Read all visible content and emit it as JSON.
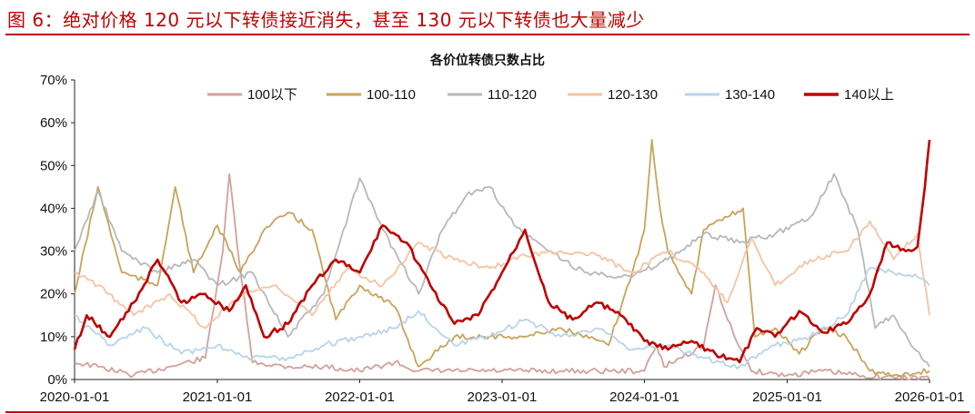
{
  "figure_title": "图 6：绝对价格 120 元以下转债接近消失，甚至 130 元以下转债也大量减少",
  "chart_data": {
    "type": "line",
    "title": "各价位转债只数占比",
    "xlabel": "",
    "ylabel": "",
    "ylim": [
      0,
      70
    ],
    "y_ticks": [
      "0%",
      "10%",
      "20%",
      "30%",
      "40%",
      "50%",
      "60%",
      "70%"
    ],
    "x_range": [
      "2020-01-01",
      "2026-01-01"
    ],
    "x_ticks": [
      "2020-01-01",
      "2021-01-01",
      "2022-01-01",
      "2023-01-01",
      "2024-01-01",
      "2025-01-01",
      "2026-01-01"
    ],
    "grid": false,
    "legend_position": "top",
    "series": [
      {
        "name": "100以下",
        "color": "#d4a09b",
        "points": [
          [
            "2020-01-01",
            4
          ],
          [
            "2020-03-01",
            3
          ],
          [
            "2020-06-01",
            1
          ],
          [
            "2020-09-01",
            3
          ],
          [
            "2020-12-01",
            5
          ],
          [
            "2021-01-15",
            30
          ],
          [
            "2021-02-01",
            48
          ],
          [
            "2021-02-20",
            32
          ],
          [
            "2021-04-01",
            4
          ],
          [
            "2021-07-01",
            3
          ],
          [
            "2021-10-01",
            3
          ],
          [
            "2022-01-01",
            2
          ],
          [
            "2022-04-01",
            4
          ],
          [
            "2022-06-01",
            2
          ],
          [
            "2022-10-01",
            2
          ],
          [
            "2023-01-01",
            2
          ],
          [
            "2023-06-01",
            2
          ],
          [
            "2023-10-01",
            2
          ],
          [
            "2024-01-01",
            2
          ],
          [
            "2024-02-01",
            8
          ],
          [
            "2024-02-20",
            3
          ],
          [
            "2024-06-01",
            8
          ],
          [
            "2024-07-01",
            22
          ],
          [
            "2024-08-01",
            14
          ],
          [
            "2024-09-15",
            5
          ],
          [
            "2024-10-01",
            2
          ],
          [
            "2025-01-01",
            1
          ],
          [
            "2025-04-01",
            2
          ],
          [
            "2025-07-01",
            1
          ],
          [
            "2025-10-01",
            0.5
          ],
          [
            "2026-01-01",
            0.3
          ]
        ]
      },
      {
        "name": "100-110",
        "color": "#c9a35a",
        "points": [
          [
            "2020-01-01",
            20
          ],
          [
            "2020-03-01",
            45
          ],
          [
            "2020-05-01",
            25
          ],
          [
            "2020-08-01",
            22
          ],
          [
            "2020-09-15",
            45
          ],
          [
            "2020-11-01",
            25
          ],
          [
            "2021-01-01",
            36
          ],
          [
            "2021-03-01",
            25
          ],
          [
            "2021-05-01",
            35
          ],
          [
            "2021-07-01",
            39
          ],
          [
            "2021-09-01",
            35
          ],
          [
            "2021-11-01",
            14
          ],
          [
            "2022-01-01",
            22
          ],
          [
            "2022-04-01",
            17
          ],
          [
            "2022-06-01",
            3
          ],
          [
            "2022-09-01",
            10
          ],
          [
            "2022-12-01",
            10
          ],
          [
            "2023-03-01",
            10
          ],
          [
            "2023-06-01",
            12
          ],
          [
            "2023-10-01",
            8
          ],
          [
            "2023-12-01",
            25
          ],
          [
            "2024-01-01",
            35
          ],
          [
            "2024-01-20",
            56
          ],
          [
            "2024-02-10",
            40
          ],
          [
            "2024-03-01",
            30
          ],
          [
            "2024-05-01",
            20
          ],
          [
            "2024-06-01",
            35
          ],
          [
            "2024-08-01",
            38
          ],
          [
            "2024-09-10",
            40
          ],
          [
            "2024-10-10",
            10
          ],
          [
            "2024-12-01",
            12
          ],
          [
            "2025-02-01",
            6
          ],
          [
            "2025-04-01",
            12
          ],
          [
            "2025-06-01",
            10
          ],
          [
            "2025-08-01",
            2
          ],
          [
            "2025-10-01",
            1
          ],
          [
            "2026-01-01",
            2
          ]
        ]
      },
      {
        "name": "110-120",
        "color": "#b8b8b8",
        "points": [
          [
            "2020-01-01",
            30
          ],
          [
            "2020-03-01",
            44
          ],
          [
            "2020-05-01",
            30
          ],
          [
            "2020-08-01",
            25
          ],
          [
            "2020-11-01",
            28
          ],
          [
            "2021-01-01",
            22
          ],
          [
            "2021-04-01",
            25
          ],
          [
            "2021-07-01",
            10
          ],
          [
            "2021-10-01",
            20
          ],
          [
            "2022-01-01",
            47
          ],
          [
            "2022-03-01",
            35
          ],
          [
            "2022-06-01",
            20
          ],
          [
            "2022-08-01",
            35
          ],
          [
            "2022-10-01",
            43
          ],
          [
            "2022-12-01",
            45
          ],
          [
            "2023-02-01",
            36
          ],
          [
            "2023-05-01",
            30
          ],
          [
            "2023-08-01",
            25
          ],
          [
            "2023-12-01",
            24
          ],
          [
            "2024-03-01",
            28
          ],
          [
            "2024-06-01",
            34
          ],
          [
            "2024-09-01",
            32
          ],
          [
            "2024-12-01",
            34
          ],
          [
            "2025-03-01",
            38
          ],
          [
            "2025-05-01",
            48
          ],
          [
            "2025-07-01",
            35
          ],
          [
            "2025-08-15",
            12
          ],
          [
            "2025-10-01",
            15
          ],
          [
            "2025-11-15",
            8
          ],
          [
            "2026-01-01",
            3
          ]
        ]
      },
      {
        "name": "120-130",
        "color": "#f4c4a4",
        "points": [
          [
            "2020-01-01",
            25
          ],
          [
            "2020-03-01",
            22
          ],
          [
            "2020-06-01",
            15
          ],
          [
            "2020-09-01",
            20
          ],
          [
            "2020-12-01",
            12
          ],
          [
            "2021-03-01",
            20
          ],
          [
            "2021-06-01",
            22
          ],
          [
            "2021-09-01",
            15
          ],
          [
            "2021-12-01",
            26
          ],
          [
            "2022-03-01",
            22
          ],
          [
            "2022-06-01",
            32
          ],
          [
            "2022-09-01",
            28
          ],
          [
            "2022-12-01",
            26
          ],
          [
            "2023-03-01",
            29
          ],
          [
            "2023-06-01",
            30
          ],
          [
            "2023-09-01",
            29
          ],
          [
            "2023-12-01",
            25
          ],
          [
            "2024-03-01",
            30
          ],
          [
            "2024-06-01",
            25
          ],
          [
            "2024-08-01",
            18
          ],
          [
            "2024-10-01",
            33
          ],
          [
            "2024-12-01",
            22
          ],
          [
            "2025-03-01",
            28
          ],
          [
            "2025-06-01",
            30
          ],
          [
            "2025-08-01",
            37
          ],
          [
            "2025-10-01",
            28
          ],
          [
            "2025-12-01",
            34
          ],
          [
            "2026-01-01",
            15
          ]
        ]
      },
      {
        "name": "130-140",
        "color": "#b8d4ea",
        "points": [
          [
            "2020-01-01",
            15
          ],
          [
            "2020-04-01",
            8
          ],
          [
            "2020-07-01",
            12
          ],
          [
            "2020-10-01",
            6
          ],
          [
            "2021-01-01",
            8
          ],
          [
            "2021-04-01",
            5
          ],
          [
            "2021-07-01",
            5
          ],
          [
            "2021-10-01",
            8
          ],
          [
            "2022-01-01",
            10
          ],
          [
            "2022-04-01",
            12
          ],
          [
            "2022-06-01",
            16
          ],
          [
            "2022-09-01",
            8
          ],
          [
            "2022-12-01",
            10
          ],
          [
            "2023-03-01",
            14
          ],
          [
            "2023-06-01",
            10
          ],
          [
            "2023-09-01",
            12
          ],
          [
            "2023-12-01",
            7
          ],
          [
            "2024-03-01",
            8
          ],
          [
            "2024-06-01",
            5
          ],
          [
            "2024-09-01",
            3
          ],
          [
            "2024-12-01",
            8
          ],
          [
            "2025-03-01",
            10
          ],
          [
            "2025-06-01",
            15
          ],
          [
            "2025-08-01",
            26
          ],
          [
            "2025-10-01",
            25
          ],
          [
            "2025-12-01",
            24
          ],
          [
            "2026-01-01",
            22
          ]
        ]
      },
      {
        "name": "140以上",
        "color": "#c00000",
        "points": [
          [
            "2020-01-01",
            7
          ],
          [
            "2020-02-01",
            15
          ],
          [
            "2020-04-01",
            10
          ],
          [
            "2020-06-01",
            18
          ],
          [
            "2020-08-01",
            28
          ],
          [
            "2020-10-01",
            18
          ],
          [
            "2020-12-01",
            20
          ],
          [
            "2021-02-01",
            16
          ],
          [
            "2021-03-15",
            22
          ],
          [
            "2021-05-01",
            10
          ],
          [
            "2021-07-01",
            13
          ],
          [
            "2021-09-01",
            22
          ],
          [
            "2021-11-01",
            28
          ],
          [
            "2022-01-01",
            25
          ],
          [
            "2022-03-01",
            36
          ],
          [
            "2022-05-01",
            32
          ],
          [
            "2022-07-01",
            22
          ],
          [
            "2022-09-01",
            13
          ],
          [
            "2022-11-01",
            15
          ],
          [
            "2023-01-01",
            25
          ],
          [
            "2023-03-01",
            35
          ],
          [
            "2023-05-01",
            18
          ],
          [
            "2023-07-01",
            14
          ],
          [
            "2023-09-01",
            18
          ],
          [
            "2023-11-01",
            15
          ],
          [
            "2024-01-01",
            9
          ],
          [
            "2024-03-01",
            7
          ],
          [
            "2024-05-01",
            9
          ],
          [
            "2024-07-01",
            6
          ],
          [
            "2024-09-01",
            4
          ],
          [
            "2024-10-15",
            12
          ],
          [
            "2024-12-01",
            10
          ],
          [
            "2025-02-01",
            16
          ],
          [
            "2025-04-01",
            11
          ],
          [
            "2025-06-01",
            13
          ],
          [
            "2025-08-01",
            20
          ],
          [
            "2025-09-15",
            32
          ],
          [
            "2025-11-01",
            30
          ],
          [
            "2025-12-01",
            31
          ],
          [
            "2025-12-20",
            45
          ],
          [
            "2026-01-01",
            56
          ]
        ]
      }
    ]
  }
}
